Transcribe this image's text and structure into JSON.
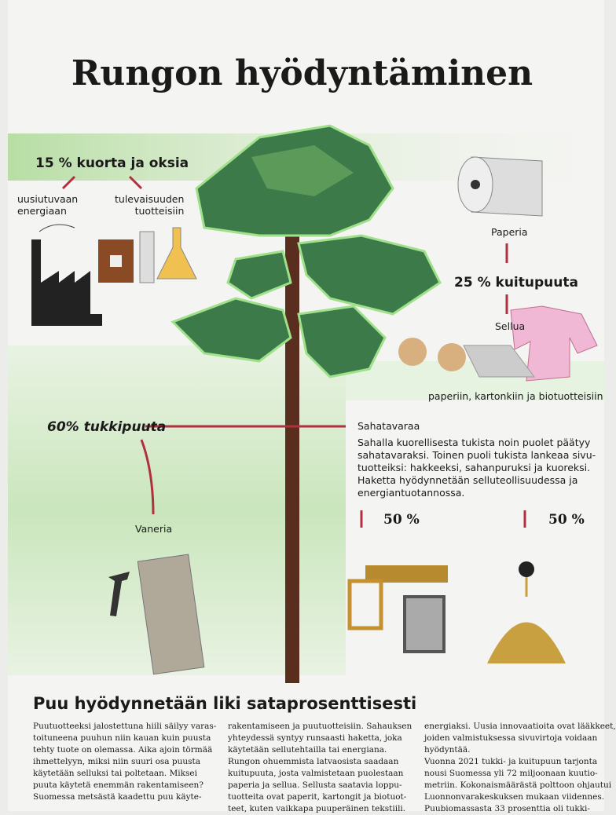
{
  "title": "Rungon hyödyntäminen",
  "labels": {
    "bark": "15 % kuorta ja oksia",
    "energy": [
      "uusiutuvaan",
      "energiaan"
    ],
    "future": [
      "tulevaisuuden",
      "tuotteisiin"
    ],
    "paper": "Paperia",
    "pulpwood": "25 % kuitupuuta",
    "pulp": "Sellua",
    "pulp_uses": "paperiin, kartonkiin ja biotuotteisiin",
    "logs": "60% tukkipuuta",
    "sawn": "Sahatavaraa",
    "sawn_text": [
      "Sahalla kuorellisesta tukista noin puolet päätyy",
      "sahatavaraksi. Toinen puoli tukista lankeaa sivu-",
      "tuotteiksi: hakkeeksi, sahanpuruksi ja kuoreksi.",
      "Haketta hyödynnetään selluteollisuudessa ja",
      "energiantuotannossa."
    ],
    "half_left": "50 %",
    "half_right": "50 %",
    "plywood": "Vaneria"
  },
  "article": {
    "heading": "Puu hyödynnetään liki sataprosenttisesti",
    "columns": [
      [
        "Puutuotteeksi jalostettuna hiili säilyy varas-",
        "toituneena puuhun niin kauan kuin puusta",
        "tehty tuote on olemassa. Aika ajoin törmää",
        "ihmettelyyn, miksi niin suuri osa puusta",
        "käytetään selluksi tai poltetaan. Miksei",
        "puuta käytetä enemmän rakentamiseen?",
        "Suomessa metsästä kaadettu puu käyte-"
      ],
      [
        "rakentamiseen ja puutuotteisiin. Sahauksen",
        "yhteydessä syntyy runsaasti haketta, joka",
        "käytetään sellutehtailla tai energiana.",
        "Rungon ohuemmista latvaosista saadaan",
        "kuitupuuta, josta valmistetaan puolestaan",
        "paperia ja sellua. Sellusta saatavia loppu-",
        "tuotteita ovat paperit, kartongit ja biotuot-",
        "teet, kuten vaikkapa puuperäinen tekstiili."
      ],
      [
        "energiaksi. Uusia innovaatioita ovat lääkkeet,",
        "joiden valmistuksessa sivuvirtoja voidaan",
        "hyödyntää.",
        "Vuonna 2021 tukki- ja kuitupuun tarjonta",
        "nousi Suomessa yli 72 miljoonaan kuutio-",
        "metriin. Kokonaismäärästä polttoon ohjautui",
        "Luonnonvarakeskuksen mukaan viidennes.",
        "Puubiomassasta 33 prosenttia oli tukki-"
      ]
    ]
  }
}
